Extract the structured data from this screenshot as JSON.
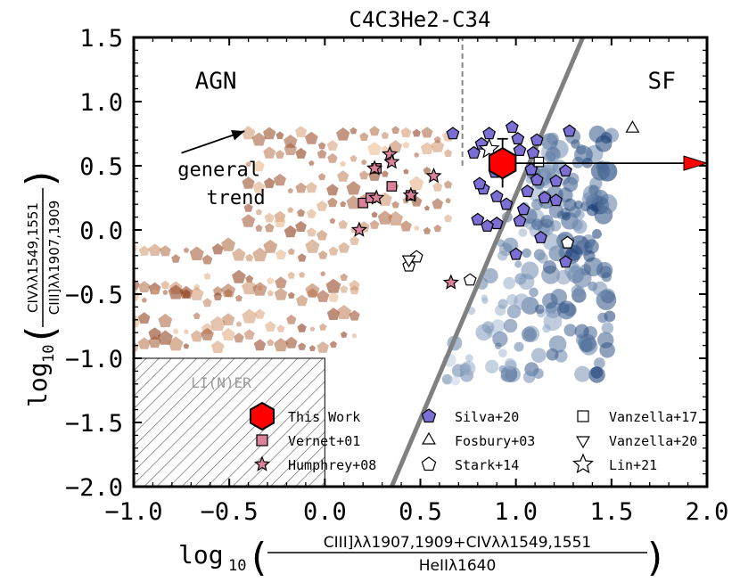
{
  "chart_data": {
    "type": "scatter",
    "title": "C4C3He2-C34",
    "xlabel": {
      "prefix": "log",
      "sub": "10",
      "numerator": "CIII]λλ1907,1909+CIVλλ1549,1551",
      "denominator": "HeIIλ1640"
    },
    "ylabel": {
      "prefix": "log",
      "sub": "10",
      "numerator": "CIVλλ1549,1551",
      "denominator": "CIII]λλ1907,1909"
    },
    "xlim": [
      -1.0,
      2.0
    ],
    "ylim": [
      -2.0,
      1.5
    ],
    "xticks": [
      -1.0,
      -0.5,
      0.0,
      0.5,
      1.0,
      1.5,
      2.0
    ],
    "yticks": [
      -2.0,
      -1.5,
      -1.0,
      -0.5,
      0.0,
      0.5,
      1.0,
      1.5
    ],
    "xtick_labels": [
      "−1.0",
      "−0.5",
      "0.0",
      "0.5",
      "1.0",
      "1.5",
      "2.0"
    ],
    "ytick_labels": [
      "−2.0",
      "−1.5",
      "−1.0",
      "−0.5",
      "0.0",
      "0.5",
      "1.0",
      "1.5"
    ],
    "regions": {
      "agn_label": "AGN",
      "sf_label": "SF",
      "liner_label": "LI(N)ER",
      "liner_box": {
        "x": [
          -1.0,
          0.0
        ],
        "y": [
          -2.0,
          -1.0
        ]
      },
      "dividing_line": {
        "p1": [
          0.35,
          -2.0
        ],
        "p2": [
          1.35,
          1.5
        ]
      },
      "vertical_dashed_x": 0.72,
      "vertical_dashed_y": [
        0.5,
        1.5
      ],
      "trend_label_1": "general",
      "trend_label_2": "trend",
      "trend_arrow": {
        "from": [
          -0.75,
          0.6
        ],
        "to": [
          -0.42,
          0.77
        ]
      }
    },
    "this_work": {
      "x": 0.93,
      "y": 0.52,
      "yerr": 0.19,
      "xerr_lower_limit_to": 2.0
    },
    "series": [
      {
        "name": "This Work",
        "marker": "hexagon",
        "color": "#ff0000",
        "points": [
          [
            0.93,
            0.52
          ]
        ]
      },
      {
        "name": "Vernet+01",
        "marker": "square",
        "color": "#d9829a",
        "points": [
          [
            0.2,
            0.21
          ],
          [
            0.24,
            0.25
          ],
          [
            0.35,
            0.34
          ],
          [
            0.45,
            0.27
          ],
          [
            0.27,
            0.48
          ]
        ]
      },
      {
        "name": "Humphrey+08",
        "marker": "star",
        "color": "#d9829a",
        "points": [
          [
            0.26,
            0.48
          ],
          [
            0.34,
            0.59
          ],
          [
            0.35,
            0.53
          ],
          [
            0.45,
            0.27
          ],
          [
            0.57,
            0.42
          ],
          [
            0.18,
            0.0
          ],
          [
            0.27,
            0.25
          ],
          [
            0.66,
            -0.41
          ]
        ]
      },
      {
        "name": "Silva+20",
        "marker": "pentagon",
        "color": "#7b6fd6",
        "points": [
          [
            0.86,
            0.75
          ],
          [
            0.98,
            0.8
          ],
          [
            1.11,
            0.7
          ],
          [
            1.28,
            0.77
          ],
          [
            1.01,
            0.71
          ],
          [
            0.67,
            0.75
          ],
          [
            0.78,
            0.6
          ],
          [
            0.82,
            0.67
          ],
          [
            1.02,
            0.62
          ],
          [
            1.09,
            0.6
          ],
          [
            0.89,
            0.45
          ],
          [
            1.08,
            0.47
          ],
          [
            1.11,
            0.39
          ],
          [
            1.06,
            0.3
          ],
          [
            0.83,
            0.32
          ],
          [
            1.21,
            0.38
          ],
          [
            1.26,
            0.46
          ],
          [
            0.9,
            0.26
          ],
          [
            0.95,
            0.2
          ],
          [
            1.04,
            0.16
          ],
          [
            1.15,
            0.25
          ],
          [
            1.21,
            0.23
          ],
          [
            0.9,
            0.05
          ],
          [
            1.02,
            0.07
          ],
          [
            1.13,
            -0.06
          ],
          [
            0.8,
            0.08
          ],
          [
            0.85,
            0.03
          ],
          [
            1.0,
            -0.19
          ],
          [
            1.26,
            -0.25
          ],
          [
            0.81,
            0.36
          ]
        ]
      },
      {
        "name": "Fosbury+03",
        "marker": "triangle-up",
        "color": "#ffffff",
        "points": [
          [
            1.61,
            0.79
          ]
        ]
      },
      {
        "name": "Stark+14",
        "marker": "pentagon-open",
        "color": "#ffffff",
        "points": [
          [
            0.48,
            -0.21
          ],
          [
            0.44,
            -0.28
          ],
          [
            0.76,
            -0.39
          ],
          [
            1.27,
            -0.1
          ]
        ]
      },
      {
        "name": "Vanzella+17",
        "marker": "square-open",
        "color": "#ffffff",
        "points": [
          [
            1.12,
            0.53
          ]
        ]
      },
      {
        "name": "Vanzella+20",
        "marker": "triangle-down",
        "color": "#ffffff",
        "points": [
          [
            0.44,
            -0.23
          ]
        ]
      },
      {
        "name": "Lin+21",
        "marker": "star-open",
        "color": "#ffffff",
        "points": [
          [
            0.86,
            0.63
          ]
        ]
      }
    ],
    "legend": {
      "placement": "lower-right",
      "entries": [
        "This Work",
        "Silva+20",
        "Vanzella+17",
        "Vernet+01",
        "Fosbury+03",
        "Vanzella+20",
        "Humphrey+08",
        "Stark+14",
        "Lin+21"
      ]
    },
    "model_grids": {
      "agn": {
        "name": "AGN photoionization models",
        "color_light": "#fdd0a2",
        "color_dark": "#7f2704"
      },
      "sf": {
        "name": "SF photoionization models",
        "color_light": "#deebf7",
        "color_dark": "#08306b"
      }
    }
  }
}
